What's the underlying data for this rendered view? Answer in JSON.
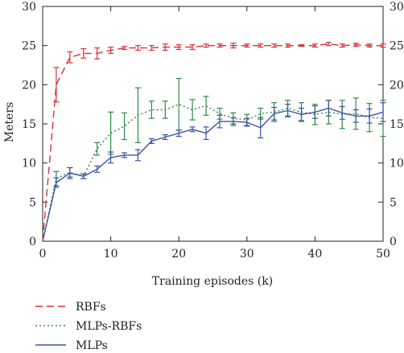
{
  "chart_data": {
    "type": "line",
    "title": "",
    "xlabel": "Training episodes (k)",
    "ylabel": "Meters",
    "xlim": [
      0,
      50
    ],
    "ylim": [
      0,
      30
    ],
    "xticks": [
      0,
      10,
      20,
      30,
      40,
      50
    ],
    "yticks": [
      0,
      5,
      10,
      15,
      20,
      25,
      30
    ],
    "right_axis_ticks": true,
    "grid": false,
    "legend_position": "bottom-left, below plot",
    "series": [
      {
        "name": "RBFs",
        "color": "#d9303c",
        "dash": "dashed",
        "x": [
          0,
          2,
          4,
          6,
          8,
          10,
          12,
          14,
          16,
          18,
          20,
          22,
          24,
          26,
          28,
          30,
          32,
          34,
          36,
          38,
          40,
          42,
          44,
          46,
          48,
          50
        ],
        "y": [
          0,
          20,
          23.5,
          24,
          24,
          24.4,
          24.7,
          24.7,
          24.7,
          24.8,
          24.8,
          24.8,
          25,
          25,
          25,
          25,
          25,
          25,
          25,
          25,
          25,
          25.2,
          25,
          25.1,
          25,
          25
        ],
        "err": [
          0,
          2.2,
          0.7,
          0.6,
          0.7,
          0.4,
          0.2,
          0.3,
          0.3,
          0.4,
          0.3,
          0.3,
          0.2,
          0.2,
          0.3,
          0.2,
          0.2,
          0.2,
          0.2,
          0.1,
          0.2,
          0.2,
          0.2,
          0.2,
          0.2,
          0.2
        ]
      },
      {
        "name": "MLPs-RBFs",
        "color": "#2e8a4a",
        "dash": "dotted",
        "x": [
          0,
          2,
          4,
          6,
          8,
          10,
          12,
          14,
          16,
          18,
          20,
          22,
          24,
          26,
          28,
          30,
          32,
          34,
          36,
          38,
          40,
          42,
          44,
          46,
          48,
          50
        ],
        "y": [
          0,
          8,
          8.8,
          8.3,
          11.8,
          13.8,
          14.7,
          16.1,
          16.8,
          16.8,
          17.5,
          16.8,
          17.3,
          16.3,
          15.7,
          15.5,
          16.3,
          16.5,
          17,
          16.5,
          16.2,
          16.5,
          16.2,
          16.3,
          15.8,
          15.7
        ],
        "err": [
          0,
          0.9,
          0.6,
          0.3,
          0.8,
          2.7,
          1.7,
          3.5,
          1.1,
          1.1,
          3.3,
          1.3,
          1.2,
          0.7,
          0.7,
          0.7,
          0.7,
          1.2,
          1,
          1.2,
          1.3,
          1.5,
          1.8,
          2,
          1.8,
          2.3
        ]
      },
      {
        "name": "MLPs",
        "color": "#3b54a4",
        "dash": "solid",
        "x": [
          0,
          2,
          4,
          6,
          8,
          10,
          12,
          14,
          16,
          18,
          20,
          22,
          24,
          26,
          28,
          30,
          32,
          34,
          36,
          38,
          40,
          42,
          44,
          46,
          48,
          50
        ],
        "y": [
          0,
          7.5,
          8.7,
          8.3,
          9.2,
          10.7,
          11,
          11,
          12.8,
          13.3,
          13.8,
          14.3,
          13.8,
          15.3,
          15.3,
          15.2,
          14.5,
          16.3,
          16.7,
          16.2,
          16.5,
          17,
          16.4,
          16,
          16,
          16.5
        ],
        "err": [
          0,
          0.6,
          0.7,
          0.3,
          0.4,
          0.7,
          0.3,
          0.7,
          0.3,
          0.3,
          0.4,
          0.3,
          0.8,
          0.8,
          0.5,
          0.5,
          1.3,
          0.8,
          0.8,
          0.8,
          0.8,
          1,
          0.8,
          0.8,
          0.9,
          1.2
        ]
      }
    ]
  }
}
